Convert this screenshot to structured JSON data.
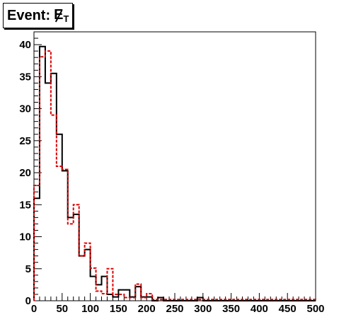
{
  "title": {
    "prefix": "Event:",
    "symbol": "E",
    "subscript": "T"
  },
  "chart_data": {
    "type": "histogram",
    "title": "Event: E̸T",
    "xlabel": "",
    "ylabel": "",
    "xlim": [
      0,
      500
    ],
    "ylim": [
      0,
      42
    ],
    "bin_width": 10,
    "grid": false,
    "legend": "none",
    "x_ticks": [
      "0",
      "50",
      "100",
      "150",
      "200",
      "250",
      "300",
      "350",
      "400",
      "450",
      "500"
    ],
    "y_ticks": [
      "0",
      "5",
      "10",
      "15",
      "20",
      "25",
      "30",
      "35",
      "40"
    ],
    "series": [
      {
        "color": "#000000",
        "style": "solid",
        "bin_edges": [
          0,
          10,
          20,
          30,
          40,
          50,
          60,
          70,
          80,
          90,
          100,
          110,
          120,
          130,
          140,
          150,
          160,
          170,
          180,
          190,
          200,
          210,
          220,
          230,
          240,
          250,
          260,
          270,
          280,
          290,
          300,
          310,
          320,
          330,
          340,
          350,
          360,
          370,
          380,
          390,
          400,
          410,
          420,
          430,
          440,
          450,
          460,
          470,
          480,
          490,
          500
        ],
        "values": [
          16,
          39.7,
          34,
          35.5,
          26,
          20.3,
          13,
          13.5,
          7,
          8,
          3.8,
          2.5,
          3.8,
          1,
          0.6,
          1.7,
          1.7,
          0.6,
          2.2,
          0.6,
          0.6,
          0,
          0.5,
          0,
          0,
          0,
          0,
          0,
          0,
          0.5,
          0,
          0,
          0,
          0,
          0,
          0,
          0,
          0,
          0,
          0,
          0,
          0,
          0,
          0,
          0,
          0,
          0,
          0,
          0,
          0
        ]
      },
      {
        "color": "#dd0000",
        "style": "dashed",
        "bin_edges": [
          0,
          10,
          20,
          30,
          40,
          50,
          60,
          70,
          80,
          90,
          100,
          110,
          120,
          130,
          140,
          150,
          160,
          170,
          180,
          190,
          200,
          210,
          220,
          230,
          240,
          250,
          260,
          270,
          280,
          290,
          300,
          310,
          320,
          330,
          340,
          350,
          360,
          370,
          380,
          390,
          400,
          410,
          420,
          430,
          440,
          450,
          460,
          470,
          480,
          490,
          500
        ],
        "values": [
          18,
          38.1,
          39,
          29,
          21,
          20.5,
          12,
          15,
          7,
          9,
          5.1,
          1.5,
          1.1,
          5,
          1,
          1,
          0.5,
          0.5,
          2.6,
          0.5,
          1.1,
          0.2,
          0.2,
          0.2,
          0.2,
          0.2,
          0.2,
          0.2,
          0.2,
          0.2,
          0.2,
          0.2,
          0.2,
          0.2,
          0.2,
          0.2,
          0.2,
          0.2,
          0.2,
          0.2,
          0.2,
          0.2,
          0.2,
          0.2,
          0.2,
          0.2,
          0.2,
          0.2,
          0.2,
          0.2
        ]
      }
    ]
  }
}
